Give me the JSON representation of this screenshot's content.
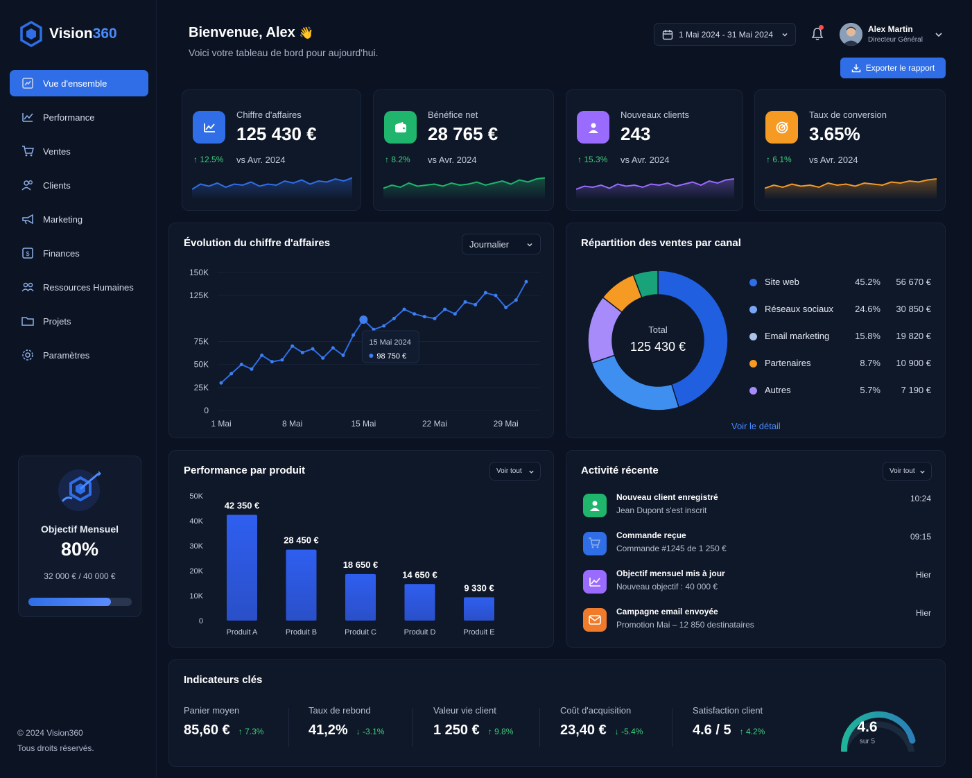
{
  "app": {
    "name_main": "Vision",
    "name_accent": "360"
  },
  "sidebar": {
    "items": [
      {
        "label": "Vue d'ensemble",
        "icon": "overview-icon",
        "active": true
      },
      {
        "label": "Performance",
        "icon": "chart-line-icon"
      },
      {
        "label": "Ventes",
        "icon": "cart-icon"
      },
      {
        "label": "Clients",
        "icon": "users-icon"
      },
      {
        "label": "Marketing",
        "icon": "megaphone-icon"
      },
      {
        "label": "Finances",
        "icon": "finance-icon"
      },
      {
        "label": "Ressources Humaines",
        "icon": "team-icon"
      },
      {
        "label": "Projets",
        "icon": "folder-icon"
      },
      {
        "label": "Paramètres",
        "icon": "gear-icon"
      }
    ]
  },
  "goal": {
    "title": "Objectif Mensuel",
    "percent": "80%",
    "progress": 0.8,
    "amount": "32 000 € / 40 000 €"
  },
  "footer": {
    "copyright": "© 2024 Vision360",
    "rights": "Tous droits réservés."
  },
  "header": {
    "title": "Bienvenue, Alex",
    "emoji": "👋",
    "subtitle": "Voici votre tableau de bord pour aujourd'hui.",
    "date_range": "1 Mai 2024 - 31 Mai 2024",
    "user_name": "Alex Martin",
    "user_role": "Directeur Général",
    "export_label": "Exporter le rapport"
  },
  "kpis": [
    {
      "label": "Chiffre d'affaires",
      "value": "125 430 €",
      "delta": "12.5%",
      "vs": "vs Avr. 2024",
      "color": "#2f6ee6",
      "icon": "chart-icon"
    },
    {
      "label": "Bénéfice net",
      "value": "28 765 €",
      "delta": "8.2%",
      "vs": "vs Avr. 2024",
      "color": "#1fb56c",
      "icon": "wallet-icon"
    },
    {
      "label": "Nouveaux clients",
      "value": "243",
      "delta": "15.3%",
      "vs": "vs Avr. 2024",
      "color": "#9a6bff",
      "icon": "user-icon"
    },
    {
      "label": "Taux de conversion",
      "value": "3.65%",
      "delta": "6.1%",
      "vs": "vs Avr. 2024",
      "color": "#f59a23",
      "icon": "target-icon"
    }
  ],
  "revenue_chart": {
    "title": "Évolution du chiffre d'affaires",
    "select": "Journalier",
    "tooltip_date": "15 Mai 2024",
    "tooltip_value": "98 750 €"
  },
  "channels": {
    "title": "Répartition des ventes par canal",
    "total_label": "Total",
    "total_value": "125 430 €",
    "link": "Voir le détail"
  },
  "products": {
    "title": "Performance par produit",
    "select": "Voir tout"
  },
  "activity": {
    "title": "Activité récente",
    "select": "Voir tout",
    "items": [
      {
        "title": "Nouveau client enregistré",
        "sub": "Jean Dupont s'est inscrit",
        "time": "10:24",
        "color": "#1fb56c",
        "icon": "user-icon"
      },
      {
        "title": "Commande reçue",
        "sub": "Commande #1245 de 1 250 €",
        "time": "09:15",
        "color": "#2f6ee6",
        "icon": "cart-icon"
      },
      {
        "title": "Objectif mensuel mis à jour",
        "sub": "Nouveau objectif : 40 000 €",
        "time": "Hier",
        "color": "#9a6bff",
        "icon": "chart-up-icon"
      },
      {
        "title": "Campagne email envoyée",
        "sub": "Promotion Mai – 12 850 destinataires",
        "time": "Hier",
        "color": "#f07b2a",
        "icon": "mail-icon"
      }
    ]
  },
  "indicators": {
    "title": "Indicateurs clés",
    "items": [
      {
        "label": "Panier moyen",
        "value": "85,60 €",
        "delta": "7.3%",
        "dir": "up"
      },
      {
        "label": "Taux de rebond",
        "value": "41,2%",
        "delta": "-3.1%",
        "dir": "down"
      },
      {
        "label": "Valeur vie client",
        "value": "1 250 €",
        "delta": "9.8%",
        "dir": "up"
      },
      {
        "label": "Coût d'acquisition",
        "value": "23,40 €",
        "delta": "-5.4%",
        "dir": "down"
      },
      {
        "label": "Satisfaction client",
        "value": "4.6 / 5",
        "delta": "4.2%",
        "dir": "up"
      }
    ],
    "gauge_value": "4.6",
    "gauge_sub": "sur 5",
    "gauge_fraction": 0.92
  },
  "chart_data": [
    {
      "type": "line",
      "title": "Évolution du chiffre d'affaires",
      "x": [
        "1 Mai",
        "2 Mai",
        "3 Mai",
        "4 Mai",
        "5 Mai",
        "6 Mai",
        "7 Mai",
        "8 Mai",
        "9 Mai",
        "10 Mai",
        "11 Mai",
        "12 Mai",
        "13 Mai",
        "14 Mai",
        "15 Mai",
        "16 Mai",
        "17 Mai",
        "18 Mai",
        "19 Mai",
        "20 Mai",
        "21 Mai",
        "22 Mai",
        "23 Mai",
        "24 Mai",
        "25 Mai",
        "26 Mai",
        "27 Mai",
        "28 Mai",
        "29 Mai",
        "30 Mai",
        "31 Mai"
      ],
      "values": [
        30000,
        40000,
        50000,
        45000,
        60000,
        53000,
        55000,
        70000,
        63000,
        67000,
        57000,
        68000,
        60000,
        82000,
        98750,
        88000,
        92000,
        100000,
        110000,
        105000,
        102000,
        100000,
        110000,
        105000,
        118000,
        115000,
        128000,
        125000,
        112000,
        120000,
        140000
      ],
      "x_ticks": [
        "1 Mai",
        "8 Mai",
        "15 Mai",
        "22 Mai",
        "29 Mai"
      ],
      "y_ticks": [
        "0",
        "25K",
        "50K",
        "75K",
        "125K",
        "150K"
      ],
      "ylim": [
        0,
        150000
      ]
    },
    {
      "type": "pie",
      "title": "Répartition des ventes par canal",
      "categories": [
        "Site web",
        "Réseaux sociaux",
        "Email marketing",
        "Partenaires",
        "Autres"
      ],
      "values": [
        56670,
        30850,
        19820,
        10900,
        7190
      ],
      "percents": [
        "45.2%",
        "24.6%",
        "15.8%",
        "8.7%",
        "5.7%"
      ],
      "labels": [
        "56 670 €",
        "30 850 €",
        "19 820 €",
        "10 900 €",
        "7 190 €"
      ],
      "colors": [
        "#1f5fe0",
        "#3f8ff0",
        "#a78bfa",
        "#f59a23",
        "#19a37a"
      ],
      "legend_colors": [
        "#2f6ee6",
        "#78a6f5",
        "#a9c3ea",
        "#f59a23",
        "#a78bfa"
      ]
    },
    {
      "type": "bar",
      "title": "Performance par produit",
      "categories": [
        "Produit A",
        "Produit B",
        "Produit C",
        "Produit D",
        "Produit E"
      ],
      "values": [
        42350,
        28450,
        18650,
        14650,
        9330
      ],
      "labels": [
        "42 350 €",
        "28 450 €",
        "18 650 €",
        "14 650 €",
        "9 330 €"
      ],
      "y_ticks": [
        "0",
        "10K",
        "20K",
        "30K",
        "40K",
        "50K"
      ],
      "ylim": [
        0,
        50000
      ]
    }
  ]
}
